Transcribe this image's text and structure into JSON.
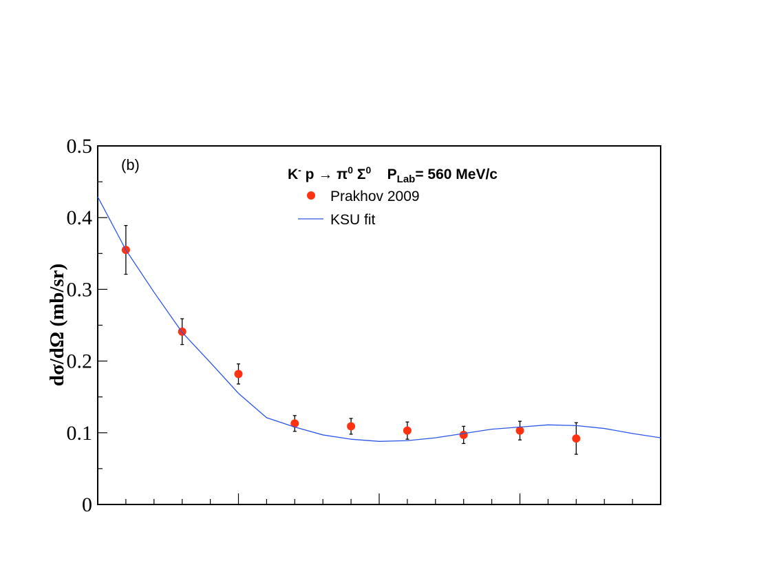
{
  "chart_data": {
    "type": "scatter",
    "annotation": "(b)",
    "title_parts": [
      {
        "text": "K",
        "sup": "-"
      },
      {
        "text": " p → π",
        "sup": "0"
      },
      {
        "text": " Σ",
        "sup": "0"
      },
      {
        "text": "    P",
        "sub": "Lab"
      },
      {
        "text": "= 560 MeV/c"
      }
    ],
    "ylabel": "dσ/dΩ (mb/sr)",
    "xlim": [
      -1,
      1
    ],
    "ylim": [
      0,
      0.5
    ],
    "xticks": [
      -1,
      -0.5,
      0,
      0.5,
      1
    ],
    "xminorticks": [
      -0.9,
      -0.8,
      -0.7,
      -0.6,
      -0.4,
      -0.3,
      -0.2,
      -0.1,
      0.1,
      0.2,
      0.3,
      0.4,
      0.6,
      0.7,
      0.8,
      0.9
    ],
    "yticks": [
      0,
      0.1,
      0.2,
      0.3,
      0.4,
      0.5
    ],
    "yminorticks": [
      0.05,
      0.15,
      0.25,
      0.35,
      0.45
    ],
    "series": [
      {
        "name": "Prakhov 2009",
        "type": "scatter",
        "color": "#ff3311",
        "x": [
          -0.9,
          -0.7,
          -0.5,
          -0.3,
          -0.1,
          0.1,
          0.3,
          0.5,
          0.7
        ],
        "values": [
          0.355,
          0.241,
          0.182,
          0.113,
          0.109,
          0.103,
          0.097,
          0.103,
          0.092
        ],
        "errors": [
          0.034,
          0.018,
          0.014,
          0.011,
          0.011,
          0.012,
          0.012,
          0.013,
          0.022
        ]
      },
      {
        "name": "KSU fit",
        "type": "line",
        "color": "#2a55e6",
        "x": [
          -1,
          -0.9,
          -0.8,
          -0.7,
          -0.6,
          -0.5,
          -0.4,
          -0.3,
          -0.2,
          -0.1,
          0,
          0.1,
          0.2,
          0.3,
          0.4,
          0.5,
          0.6,
          0.7,
          0.8,
          0.9,
          1
        ],
        "values": [
          0.429,
          0.355,
          0.296,
          0.24,
          0.198,
          0.155,
          0.121,
          0.108,
          0.097,
          0.091,
          0.088,
          0.089,
          0.093,
          0.099,
          0.105,
          0.108,
          0.111,
          0.11,
          0.106,
          0.099,
          0.093
        ]
      }
    ]
  }
}
